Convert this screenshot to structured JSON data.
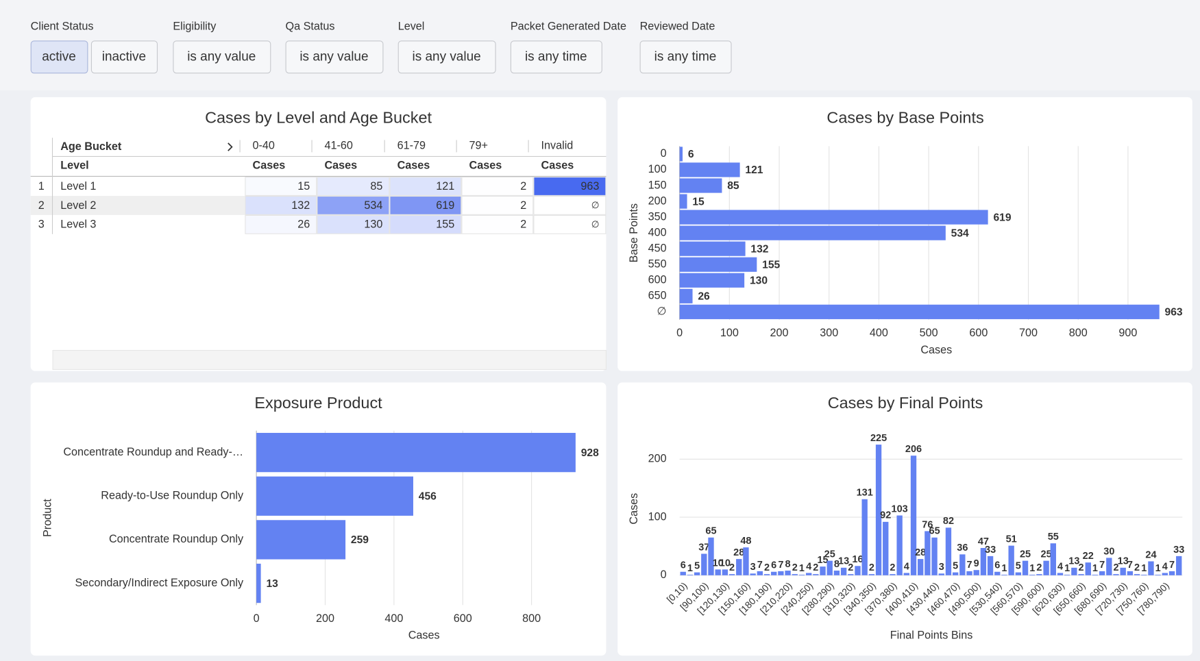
{
  "filters": [
    {
      "label": "Client Status",
      "options": [
        "active",
        "inactive"
      ]
    },
    {
      "label": "Eligibility",
      "options": [
        "is any value"
      ]
    },
    {
      "label": "Qa Status",
      "options": [
        "is any value"
      ]
    },
    {
      "label": "Level",
      "options": [
        "is any value"
      ]
    },
    {
      "label": "Packet Generated Date",
      "options": [
        "is any time"
      ]
    },
    {
      "label": "Reviewed Date",
      "options": [
        "is any time"
      ]
    }
  ],
  "pivot": {
    "title": "Cases by Level and Age Bucket",
    "column_header": "Age Bucket",
    "row_header": "Level",
    "columns": [
      "0-40",
      "41-60",
      "61-79",
      "79+",
      "Invalid"
    ],
    "measure": "Cases",
    "rows": [
      {
        "index": 1,
        "level": "Level 1",
        "cells": [
          15,
          85,
          121,
          2,
          963
        ]
      },
      {
        "index": 2,
        "level": "Level 2",
        "cells": [
          132,
          534,
          619,
          2,
          "∅"
        ]
      },
      {
        "index": 3,
        "level": "Level 3",
        "cells": [
          26,
          130,
          155,
          2,
          "∅"
        ]
      }
    ]
  },
  "chart_data": [
    {
      "type": "bar",
      "orientation": "horizontal",
      "title": "Cases by Base Points",
      "categories": [
        "0",
        "100",
        "150",
        "200",
        "350",
        "400",
        "450",
        "550",
        "600",
        "650",
        "∅"
      ],
      "values": [
        6,
        121,
        85,
        15,
        619,
        534,
        132,
        155,
        130,
        26,
        963
      ],
      "color": "#6382f2",
      "label_color": "#5b79ec",
      "xlim": [
        0,
        1000
      ],
      "xticks": [
        0,
        100,
        200,
        300,
        400,
        500,
        600,
        700,
        800,
        900
      ],
      "x_label": "Cases",
      "y_label": "Base Points",
      "grid": true
    },
    {
      "type": "bar",
      "orientation": "horizontal",
      "title": "Exposure Product",
      "categories": [
        "Concentrate Roundup and Ready-…",
        "Ready-to-Use Roundup Only",
        "Concentrate Roundup Only",
        "Secondary/Indirect Exposure Only"
      ],
      "values": [
        928,
        456,
        259,
        13
      ],
      "color": "#6382f2",
      "label_color": "#5b79ec",
      "xlim": [
        0,
        930
      ],
      "xticks": [
        0,
        200,
        400,
        600,
        800
      ],
      "x_label": "Cases",
      "y_label": "Product",
      "grid": true
    },
    {
      "type": "bar",
      "orientation": "vertical",
      "title": "Cases by Final Points",
      "categories": [
        "[0,10)",
        null,
        null,
        "[90,100)",
        null,
        null,
        "[120,130)",
        null,
        null,
        "[150,160)",
        null,
        null,
        "[180,190)",
        null,
        null,
        "[210,220)",
        null,
        null,
        "[240,250)",
        null,
        null,
        "[280,290)",
        null,
        null,
        "[310,320)",
        null,
        null,
        "[340,350)",
        null,
        null,
        "[370,380)",
        null,
        null,
        "[400,410)",
        null,
        null,
        "[430,440)",
        null,
        null,
        "[460,470)",
        null,
        null,
        "[490,500)",
        null,
        null,
        "[530,540)",
        null,
        null,
        "[560,570)",
        null,
        null,
        "[590,600)",
        null,
        null,
        "[620,630)",
        null,
        null,
        "[650,660)",
        null,
        null,
        "[680,690)",
        null,
        null,
        "[720,730)",
        null,
        null,
        "[750,760)",
        null,
        null,
        "[780,790)",
        null,
        null
      ],
      "values": [
        6,
        1,
        5,
        37,
        65,
        10,
        10,
        2,
        28,
        48,
        3,
        7,
        2,
        6,
        7,
        8,
        2,
        1,
        4,
        2,
        15,
        25,
        8,
        13,
        2,
        16,
        131,
        2,
        225,
        92,
        2,
        103,
        4,
        206,
        28,
        76,
        65,
        3,
        82,
        5,
        36,
        7,
        9,
        47,
        33,
        6,
        1,
        51,
        5,
        25,
        1,
        2,
        25,
        55,
        4,
        1,
        13,
        2,
        22,
        1,
        7,
        30,
        2,
        13,
        7,
        2,
        1,
        24,
        1,
        4,
        7,
        33
      ],
      "color": "#6382f2",
      "label_color": "#5b79ec",
      "ylim": [
        0,
        245
      ],
      "yticks": [
        0,
        100,
        200
      ],
      "x_label": "Final Points Bins",
      "y_label": "Cases",
      "grid": true
    }
  ]
}
